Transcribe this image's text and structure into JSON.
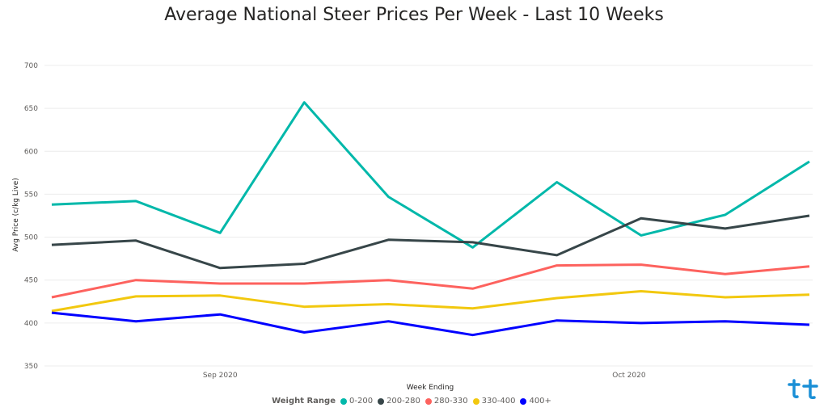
{
  "chart_data": {
    "type": "line",
    "title": "Average National Steer Prices Per Week - Last 10 Weeks",
    "xlabel": "Week Ending",
    "ylabel": "Avg Price (c/kg Live)",
    "ylim": [
      350,
      700
    ],
    "yticks": [
      350,
      400,
      450,
      500,
      550,
      600,
      650,
      700
    ],
    "xtick_labels": [
      "Sep 2020",
      "Oct 2020"
    ],
    "grid": true,
    "legend_position": "bottom",
    "legend_title": "Weight Range",
    "x": [
      "2020-08-28",
      "2020-09-04",
      "2020-09-11",
      "2020-09-18",
      "2020-09-25",
      "2020-10-02",
      "2020-10-09",
      "2020-10-16",
      "2020-10-23",
      "2020-10-30"
    ],
    "series": [
      {
        "name": "0-200",
        "color": "#01b8aa",
        "values": [
          538,
          542,
          505,
          657,
          547,
          488,
          564,
          502,
          526,
          588
        ]
      },
      {
        "name": "200-280",
        "color": "#374649",
        "values": [
          491,
          496,
          464,
          469,
          497,
          494,
          479,
          522,
          510,
          525
        ]
      },
      {
        "name": "280-330",
        "color": "#fd625e",
        "values": [
          430,
          450,
          446,
          446,
          450,
          440,
          467,
          468,
          457,
          466
        ]
      },
      {
        "name": "330-400",
        "color": "#f2c80f",
        "values": [
          414,
          431,
          432,
          419,
          422,
          417,
          429,
          437,
          430,
          433
        ]
      },
      {
        "name": "400+",
        "color": "#0000ff",
        "values": [
          412,
          402,
          410,
          389,
          402,
          386,
          403,
          400,
          402,
          398
        ]
      }
    ]
  }
}
